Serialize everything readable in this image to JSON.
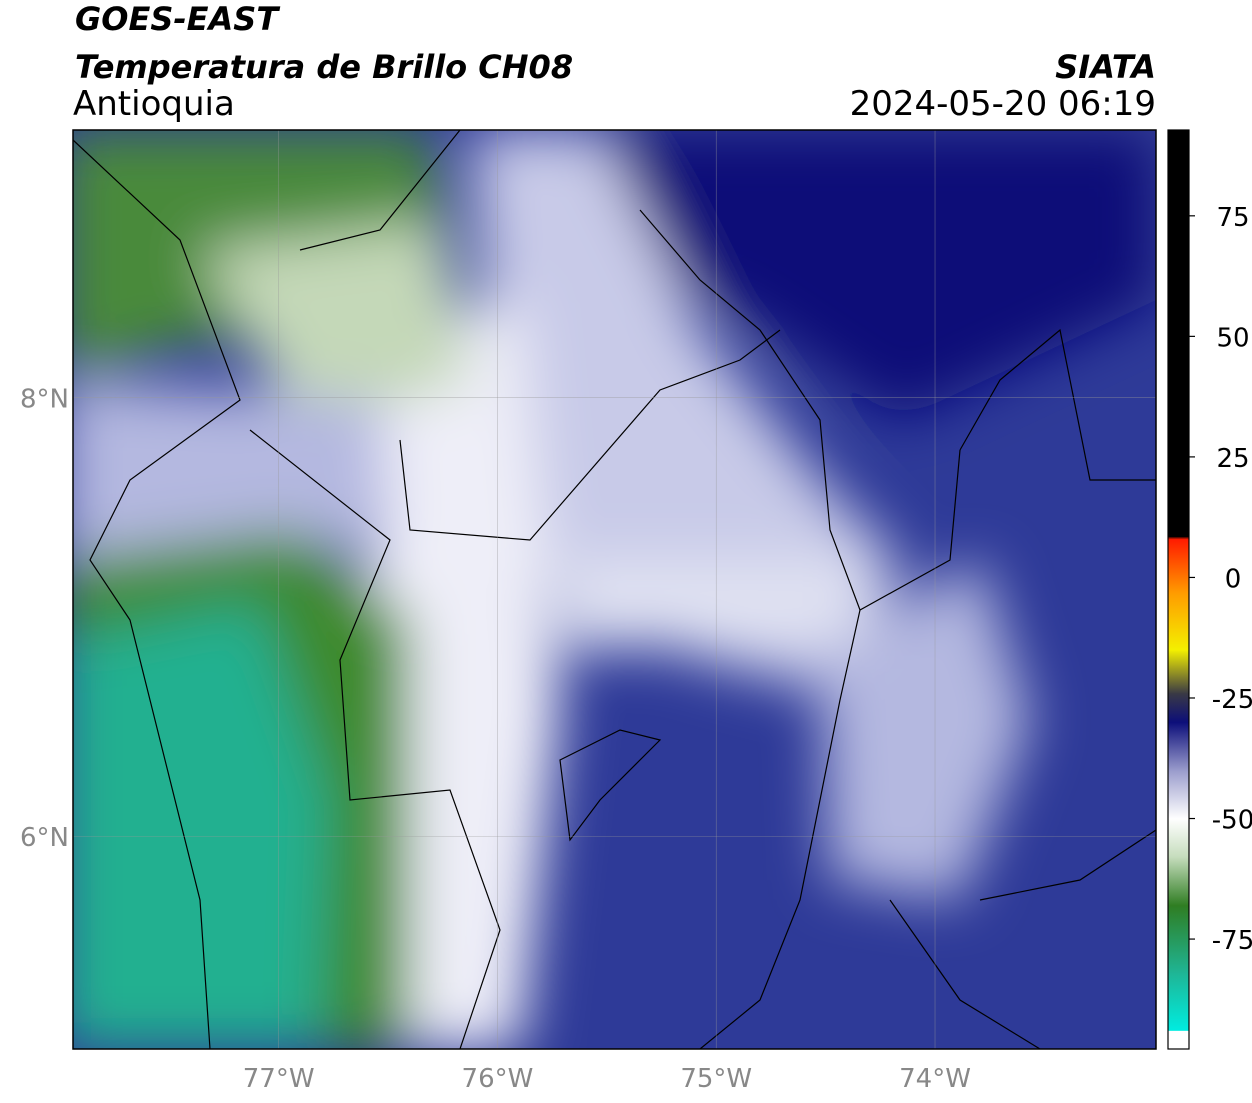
{
  "header": {
    "title": "GOES-EAST",
    "subtitle": "Temperatura de Brillo CH08",
    "region": "Antioquia",
    "source": "SIATA",
    "datetime": "2024-05-20 06:19"
  },
  "map": {
    "xlim": [
      -77.94,
      -72.99
    ],
    "ylim": [
      5.03,
      9.22
    ],
    "xticks": [
      {
        "value": -77,
        "label": "77°W"
      },
      {
        "value": -76,
        "label": "76°W"
      },
      {
        "value": -75,
        "label": "75°W"
      },
      {
        "value": -74,
        "label": "74°W"
      }
    ],
    "yticks": [
      {
        "value": 8,
        "label": "8°N"
      },
      {
        "value": 6,
        "label": "6°N"
      }
    ],
    "grid": true
  },
  "colorbar": {
    "lim": [
      -97.8,
      92.8
    ],
    "ticks": [
      75,
      50,
      25,
      0,
      -25,
      -50,
      -75
    ],
    "stops": [
      {
        "value": -97.8,
        "color": "#ffffff"
      },
      {
        "value": -94,
        "color": "#ffffff"
      },
      {
        "value": -93.9,
        "color": "#00ece0"
      },
      {
        "value": -82,
        "color": "#1fb595"
      },
      {
        "value": -68,
        "color": "#2f7d22"
      },
      {
        "value": -58,
        "color": "#c5dcbc"
      },
      {
        "value": -50,
        "color": "#ffffff"
      },
      {
        "value": -40,
        "color": "#9a9ccc"
      },
      {
        "value": -30,
        "color": "#0c0e7a"
      },
      {
        "value": -24,
        "color": "#3a3a44"
      },
      {
        "value": -15,
        "color": "#f4f000"
      },
      {
        "value": -3,
        "color": "#ff9a00"
      },
      {
        "value": 8,
        "color": "#ff1a00"
      },
      {
        "value": 8.5,
        "color": "#000000"
      },
      {
        "value": 92.8,
        "color": "#000000"
      }
    ]
  }
}
